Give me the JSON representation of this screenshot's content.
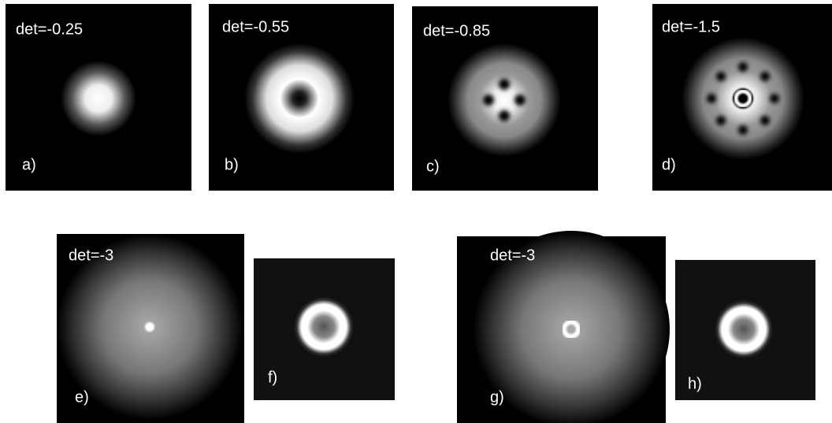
{
  "panels": [
    {
      "title": "det=-0.25",
      "label": "a)"
    },
    {
      "title": "det=-0.55",
      "label": "b)"
    },
    {
      "title": "det=-0.85",
      "label": "c)"
    },
    {
      "title": "det=-1.5",
      "label": "d)"
    },
    {
      "title": "det=-3",
      "label": "e)"
    },
    {
      "label": "f)"
    },
    {
      "title": "det=-3",
      "label": "g)"
    },
    {
      "label": "h)"
    }
  ]
}
